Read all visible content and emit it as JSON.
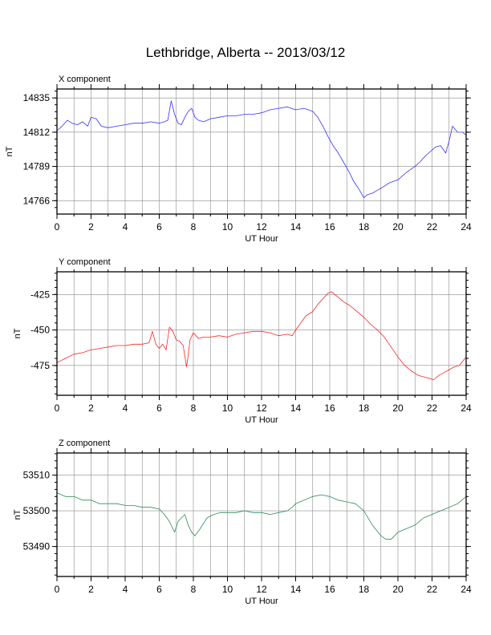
{
  "title": "Lethbridge, Alberta -- 2013/03/12",
  "chart_data": [
    {
      "type": "line",
      "subtitle": "X component",
      "xlabel": "UT Hour",
      "ylabel": "nT",
      "xlim": [
        0,
        24
      ],
      "ylim": [
        14757,
        14841
      ],
      "xticks": [
        0,
        2,
        4,
        6,
        8,
        10,
        12,
        14,
        16,
        18,
        20,
        22,
        24
      ],
      "yticks": [
        14766,
        14789,
        14812,
        14835
      ],
      "grid": true,
      "color": "#3333ff",
      "series": [
        {
          "x": [
            0,
            0.3,
            0.6,
            0.9,
            1.2,
            1.5,
            1.8,
            2.0,
            2.3,
            2.6,
            3.0,
            3.5,
            4.0,
            4.5,
            5.0,
            5.5,
            6.0,
            6.3,
            6.5,
            6.7,
            6.9,
            7.1,
            7.3,
            7.5,
            7.7,
            7.9,
            8.1,
            8.3,
            8.6,
            9.0,
            9.5,
            10.0,
            10.5,
            11.0,
            11.5,
            12.0,
            12.5,
            13.0,
            13.5,
            14.0,
            14.5,
            15.0,
            15.3,
            15.6,
            15.9,
            16.2,
            16.5,
            16.8,
            17.1,
            17.4,
            17.7,
            17.9,
            18.0,
            18.2,
            18.5,
            18.8,
            19.1,
            19.5,
            20.0,
            20.5,
            21.0,
            21.3,
            21.6,
            21.9,
            22.2,
            22.5,
            22.8,
            23.0,
            23.2,
            23.5,
            23.8,
            24.0
          ],
          "y": [
            14813,
            14816,
            14820,
            14818,
            14817,
            14819,
            14816,
            14822,
            14821,
            14816,
            14815,
            14816,
            14817,
            14818,
            14818,
            14819,
            14818,
            14819,
            14820,
            14833,
            14824,
            14818,
            14817,
            14822,
            14826,
            14828,
            14822,
            14820,
            14819,
            14821,
            14822,
            14823,
            14823,
            14824,
            14824,
            14825,
            14827,
            14828,
            14829,
            14827,
            14828,
            14826,
            14822,
            14816,
            14809,
            14803,
            14798,
            14792,
            14786,
            14779,
            14774,
            14770,
            14768,
            14770,
            14771,
            14773,
            14775,
            14778,
            14780,
            14785,
            14789,
            14792,
            14796,
            14799,
            14802,
            14803,
            14798,
            14806,
            14816,
            14812,
            14812,
            14810
          ]
        }
      ]
    },
    {
      "type": "line",
      "subtitle": "Y component",
      "xlabel": "UT Hour",
      "ylabel": "nT",
      "xlim": [
        0,
        24
      ],
      "ylim": [
        -496,
        -409
      ],
      "xticks": [
        0,
        2,
        4,
        6,
        8,
        10,
        12,
        14,
        16,
        18,
        20,
        22,
        24
      ],
      "yticks": [
        -475,
        -450,
        -425
      ],
      "grid": true,
      "color": "#ff2222",
      "series": [
        {
          "x": [
            0,
            0.5,
            1.0,
            1.5,
            2.0,
            2.5,
            3.0,
            3.5,
            4.0,
            4.5,
            5.0,
            5.4,
            5.6,
            5.8,
            6.0,
            6.2,
            6.4,
            6.6,
            6.8,
            7.0,
            7.2,
            7.4,
            7.6,
            7.7,
            7.8,
            8.0,
            8.3,
            8.6,
            9.0,
            9.5,
            10.0,
            10.5,
            11.0,
            11.5,
            12.0,
            12.5,
            13.0,
            13.5,
            13.8,
            14.0,
            14.3,
            14.6,
            15.0,
            15.3,
            15.6,
            15.9,
            16.1,
            16.4,
            16.8,
            17.2,
            17.6,
            18.0,
            18.4,
            18.8,
            19.2,
            19.6,
            20.0,
            20.4,
            20.8,
            21.2,
            21.5,
            21.8,
            22.1,
            22.4,
            22.7,
            23.0,
            23.3,
            23.6,
            24.0
          ],
          "y": [
            -473,
            -470,
            -467,
            -466,
            -464,
            -463,
            -462,
            -461,
            -461,
            -460,
            -460,
            -459,
            -451,
            -460,
            -463,
            -460,
            -464,
            -448,
            -451,
            -457,
            -458,
            -461,
            -476,
            -468,
            -457,
            -452,
            -456,
            -455,
            -455,
            -454,
            -455,
            -453,
            -452,
            -451,
            -451,
            -452,
            -454,
            -453,
            -454,
            -450,
            -445,
            -440,
            -437,
            -432,
            -428,
            -424,
            -423,
            -426,
            -430,
            -433,
            -437,
            -441,
            -446,
            -450,
            -455,
            -462,
            -469,
            -475,
            -479,
            -482,
            -483,
            -484,
            -485,
            -482,
            -480,
            -478,
            -476,
            -475,
            -469
          ]
        }
      ]
    },
    {
      "type": "line",
      "subtitle": "Z component",
      "xlabel": "UT Hour",
      "ylabel": "nT",
      "xlim": [
        0,
        24
      ],
      "ylim": [
        53481.6,
        53516.2
      ],
      "xticks": [
        0,
        2,
        4,
        6,
        8,
        10,
        12,
        14,
        16,
        18,
        20,
        22,
        24
      ],
      "yticks": [
        53490,
        53500,
        53510
      ],
      "grid": true,
      "color": "#2e8b57",
      "series": [
        {
          "x": [
            0,
            0.5,
            1.0,
            1.5,
            2.0,
            2.5,
            3.0,
            3.5,
            4.0,
            4.5,
            5.0,
            5.5,
            6.0,
            6.3,
            6.6,
            6.9,
            7.1,
            7.3,
            7.5,
            7.7,
            7.9,
            8.1,
            8.4,
            8.8,
            9.2,
            9.6,
            10.0,
            10.5,
            11.0,
            11.5,
            12.0,
            12.5,
            13.0,
            13.5,
            13.8,
            14.0,
            14.5,
            15.0,
            15.5,
            16.0,
            16.5,
            17.0,
            17.5,
            18.0,
            18.5,
            19.0,
            19.3,
            19.6,
            20.0,
            20.5,
            21.0,
            21.5,
            22.0,
            22.5,
            23.0,
            23.5,
            24.0
          ],
          "y": [
            53505,
            53504,
            53504,
            53503,
            53503,
            53502,
            53502,
            53502,
            53501.5,
            53501.5,
            53501,
            53501,
            53500.5,
            53499,
            53497,
            53494,
            53497,
            53498,
            53499,
            53496,
            53494,
            53493,
            53495,
            53498,
            53499,
            53499.5,
            53499.5,
            53499.5,
            53500,
            53499.5,
            53499.5,
            53499,
            53499.5,
            53500,
            53501,
            53502,
            53503,
            53504,
            53504.5,
            53504,
            53503,
            53502.5,
            53502,
            53500,
            53496,
            53493,
            53492,
            53492,
            53494,
            53495,
            53496,
            53498,
            53499,
            53500,
            53501,
            53502,
            53504
          ]
        }
      ]
    }
  ]
}
